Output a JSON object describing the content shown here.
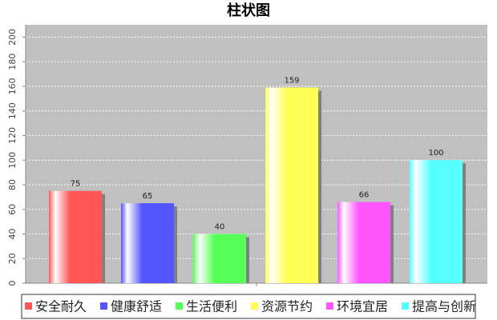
{
  "chart_data": {
    "type": "bar",
    "title": "柱状图",
    "series": [
      {
        "name": "安全耐久",
        "color": "#ff5555",
        "values": [
          75
        ]
      },
      {
        "name": "健康舒适",
        "color": "#5555ff",
        "values": [
          65
        ]
      },
      {
        "name": "生活便利",
        "color": "#55ff55",
        "values": [
          40
        ]
      },
      {
        "name": "资源节约",
        "color": "#ffff55",
        "values": [
          159
        ]
      },
      {
        "name": "环境宜居",
        "color": "#ff55ff",
        "values": [
          66
        ]
      },
      {
        "name": "提高与创新",
        "color": "#55ffff",
        "values": [
          100
        ]
      }
    ],
    "ylim": [
      0,
      210
    ],
    "yticks": [
      0,
      20,
      40,
      60,
      80,
      100,
      120,
      140,
      160,
      180,
      200
    ],
    "grid": true
  }
}
